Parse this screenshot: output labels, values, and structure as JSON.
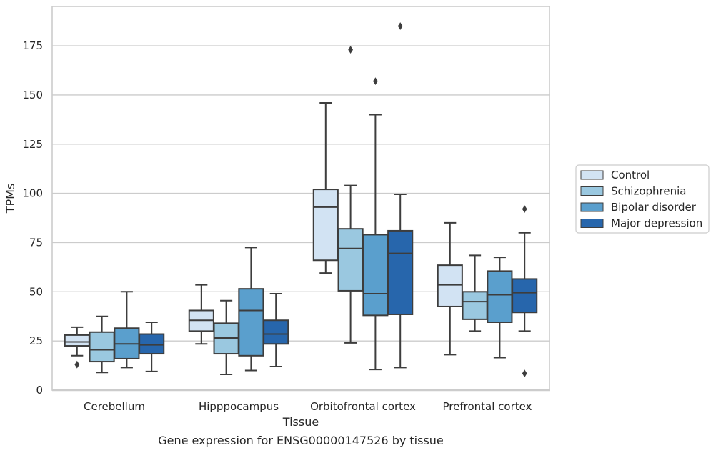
{
  "chart_data": {
    "type": "box",
    "xlabel": "Tissue",
    "ylabel": "TPMs",
    "caption": "Gene expression for ENSG00000147526 by tissue",
    "ylim": [
      0,
      195
    ],
    "yticks": [
      0,
      25,
      50,
      75,
      100,
      125,
      150,
      175
    ],
    "grid": "horizontal",
    "legend_position": "right",
    "categories": [
      "Cerebellum",
      "Hipppocampus",
      "Orbitofrontal cortex",
      "Prefrontal cortex"
    ],
    "series": [
      {
        "name": "Control",
        "color": "#d2e3f3",
        "boxes": [
          {
            "whislo": 17.5,
            "q1": 22.5,
            "med": 24.5,
            "q3": 28,
            "whishi": 32,
            "fliers": [
              13
            ]
          },
          {
            "whislo": 23.5,
            "q1": 30,
            "med": 35.5,
            "q3": 40.5,
            "whishi": 53.5,
            "fliers": []
          },
          {
            "whislo": 59.5,
            "q1": 66,
            "med": 93,
            "q3": 102,
            "whishi": 146,
            "fliers": []
          },
          {
            "whislo": 18,
            "q1": 42.5,
            "med": 53.5,
            "q3": 63.5,
            "whishi": 85,
            "fliers": []
          }
        ]
      },
      {
        "name": "Schizophrenia",
        "color": "#9ac8e0",
        "boxes": [
          {
            "whislo": 9,
            "q1": 14.5,
            "med": 20.5,
            "q3": 29.5,
            "whishi": 37.5,
            "fliers": []
          },
          {
            "whislo": 8,
            "q1": 18.5,
            "med": 26.5,
            "q3": 34,
            "whishi": 45.5,
            "fliers": []
          },
          {
            "whislo": 24,
            "q1": 50.5,
            "med": 72,
            "q3": 82,
            "whishi": 104,
            "fliers": [
              173
            ]
          },
          {
            "whislo": 30,
            "q1": 36,
            "med": 45,
            "q3": 50,
            "whishi": 68.5,
            "fliers": []
          }
        ]
      },
      {
        "name": "Bipolar disorder",
        "color": "#5a9fcd",
        "boxes": [
          {
            "whislo": 11.5,
            "q1": 16,
            "med": 23.5,
            "q3": 31.5,
            "whishi": 50,
            "fliers": []
          },
          {
            "whislo": 10,
            "q1": 17.5,
            "med": 40.5,
            "q3": 51.5,
            "whishi": 72.5,
            "fliers": []
          },
          {
            "whislo": 10.5,
            "q1": 38,
            "med": 49,
            "q3": 79,
            "whishi": 140,
            "fliers": [
              157
            ]
          },
          {
            "whislo": 16.5,
            "q1": 34.5,
            "med": 48.5,
            "q3": 60.5,
            "whishi": 67.5,
            "fliers": []
          }
        ]
      },
      {
        "name": "Major depression",
        "color": "#2766ac",
        "boxes": [
          {
            "whislo": 9.5,
            "q1": 18.5,
            "med": 23,
            "q3": 28.5,
            "whishi": 34.5,
            "fliers": []
          },
          {
            "whislo": 12,
            "q1": 23.5,
            "med": 28.5,
            "q3": 35.5,
            "whishi": 49,
            "fliers": []
          },
          {
            "whislo": 11.5,
            "q1": 38.5,
            "med": 69.5,
            "q3": 81,
            "whishi": 99.5,
            "fliers": [
              185
            ]
          },
          {
            "whislo": 30,
            "q1": 39.5,
            "med": 49.5,
            "q3": 56.5,
            "whishi": 80,
            "fliers": [
              92,
              8.5
            ]
          }
        ]
      }
    ]
  }
}
